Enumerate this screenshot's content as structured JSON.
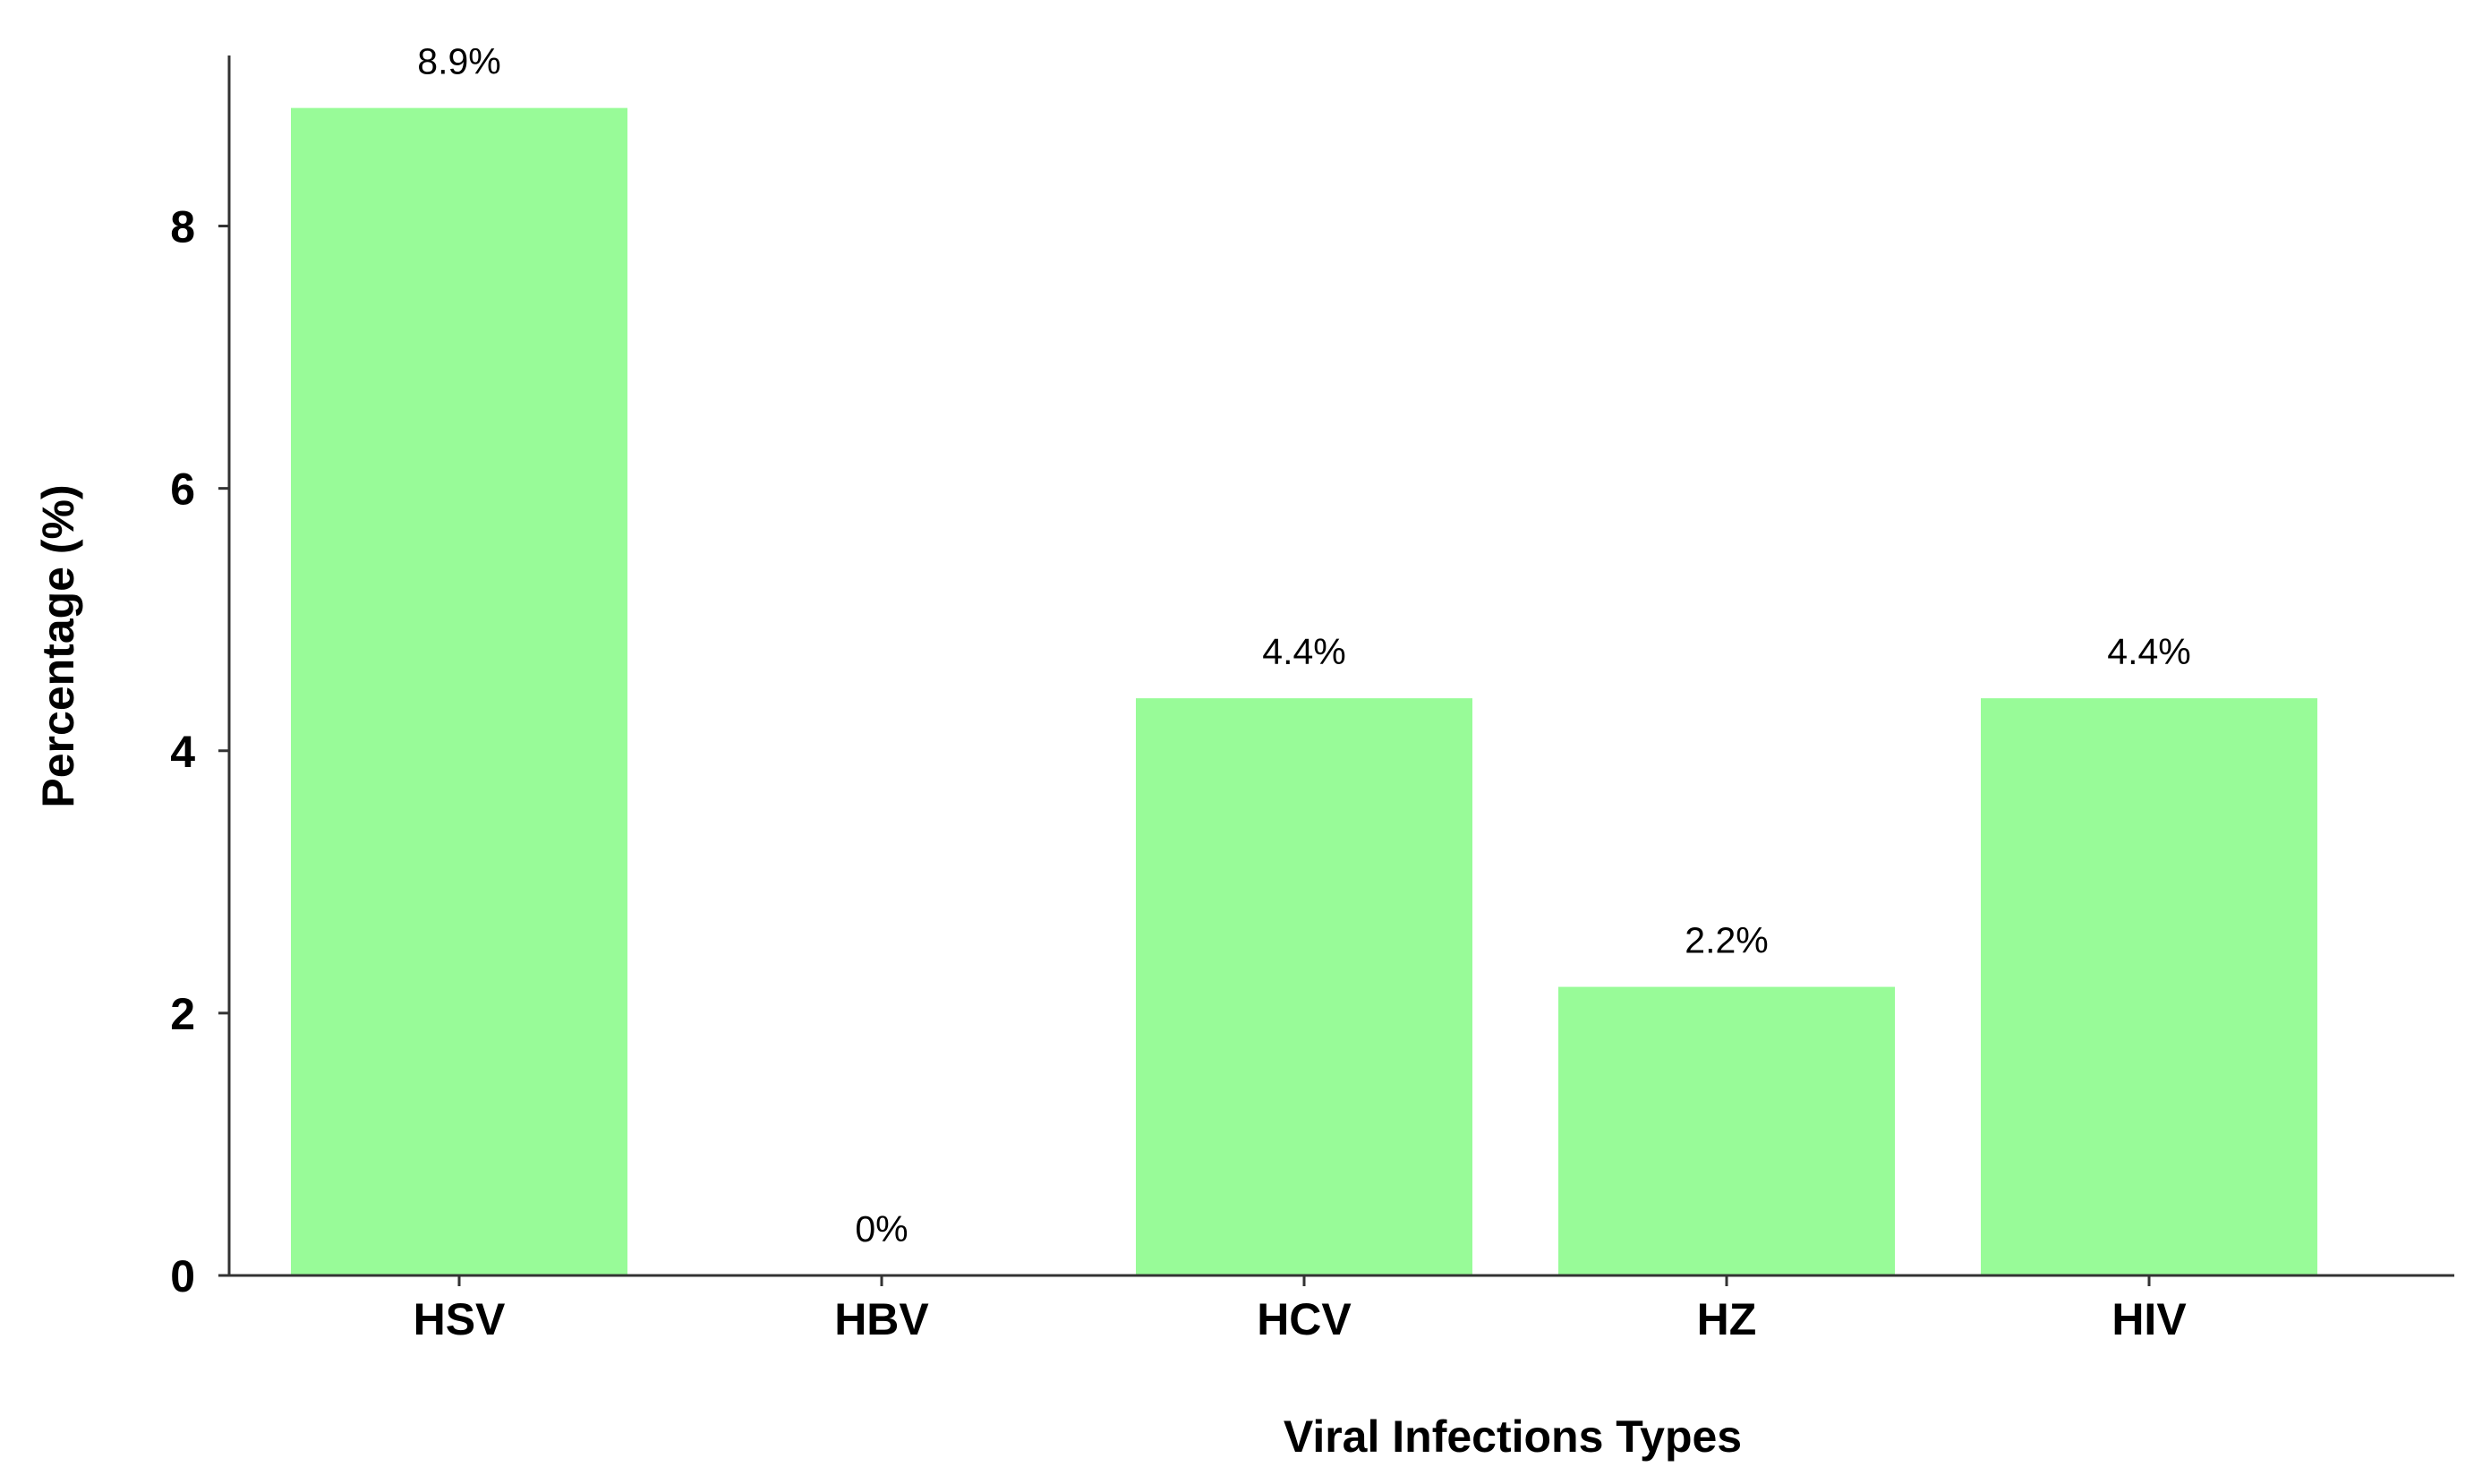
{
  "chart_data": {
    "type": "bar",
    "categories": [
      "HSV",
      "HBV",
      "HCV",
      "HZ",
      "HIV"
    ],
    "values": [
      8.9,
      0,
      4.4,
      2.2,
      4.4
    ],
    "data_labels": [
      "8.9%",
      "0%",
      "4.4%",
      "2.2%",
      "4.4%"
    ],
    "xlabel": "Viral Infections Types",
    "ylabel": "Percentage (%)",
    "ylim": [
      0,
      9.3
    ],
    "yticks": [
      0,
      2,
      4,
      6,
      8
    ],
    "ytick_labels": [
      "0",
      "2",
      "4",
      "6",
      "8"
    ],
    "grid": false,
    "legend": "none",
    "colors": {
      "bar": "#98fb98",
      "axis": "#333333"
    }
  }
}
